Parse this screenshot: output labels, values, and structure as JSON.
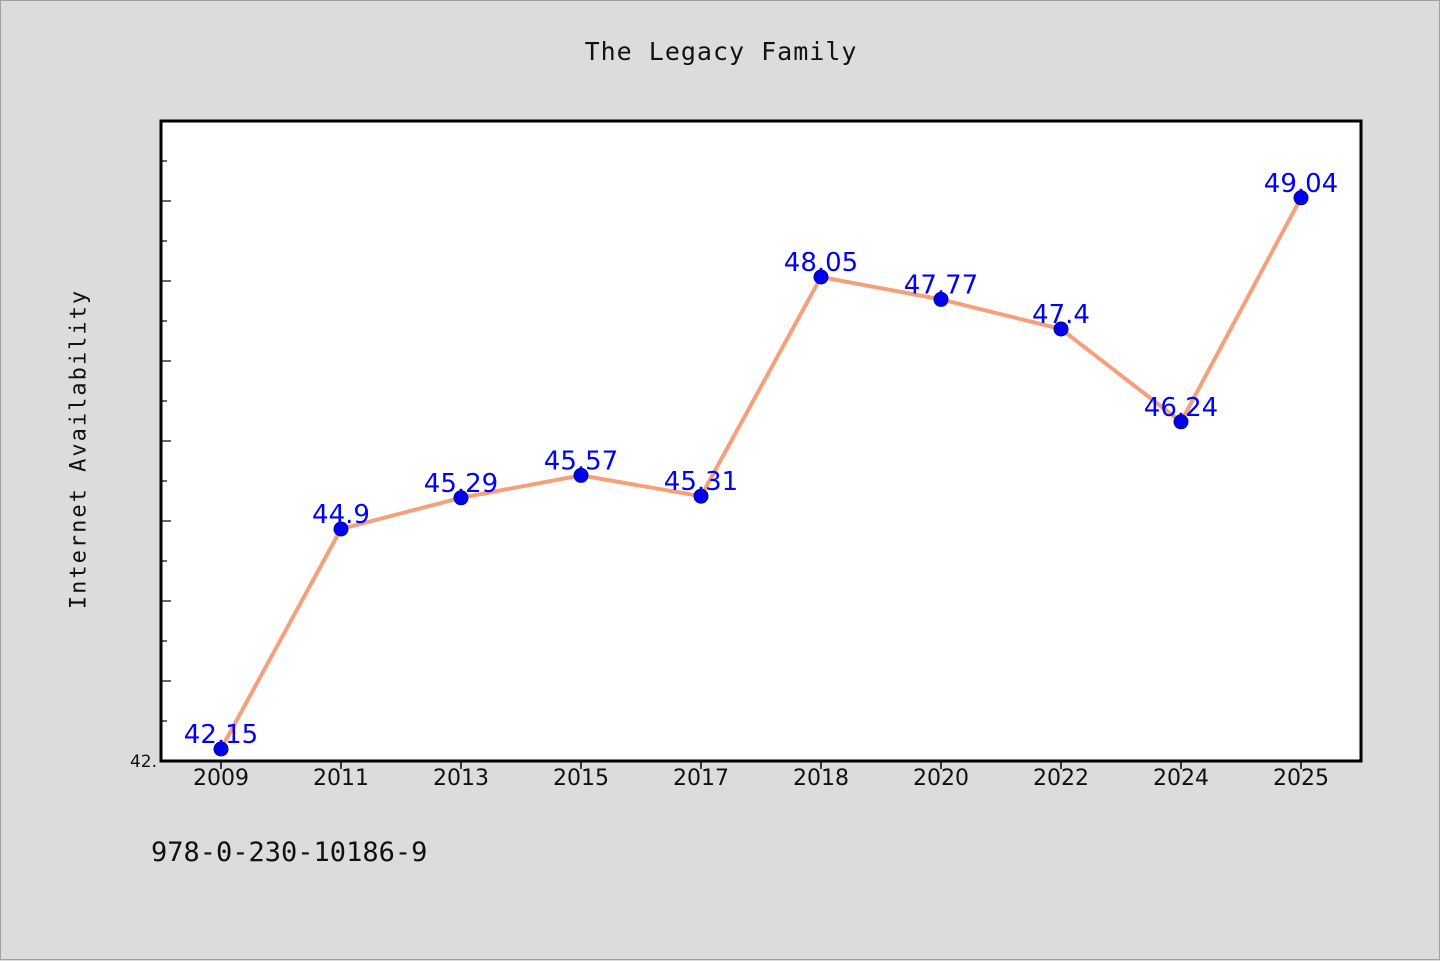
{
  "chart_data": {
    "type": "line",
    "title": "The Legacy Family",
    "xlabel": "",
    "ylabel": "Internet Availability",
    "categories": [
      "2009",
      "2011",
      "2013",
      "2015",
      "2017",
      "2018",
      "2020",
      "2022",
      "2024",
      "2025"
    ],
    "series": [
      {
        "values": [
          42.15,
          44.9,
          45.29,
          45.57,
          45.31,
          48.05,
          47.77,
          47.4,
          46.24,
          49.04
        ],
        "labels": [
          "42.15",
          "44.9",
          "45.29",
          "45.57",
          "45.31",
          "48.05",
          "47.77",
          "47.4",
          "46.24",
          "49.04"
        ]
      }
    ],
    "ylim": [
      42.0,
      50.0
    ],
    "ytick_labels": [
      "42."
    ],
    "grid": false,
    "line_color": "#f5a07a",
    "marker_color": "#0000ee",
    "label_color": "#0000ff"
  },
  "footer": {
    "code": "978-0-230-10186-9"
  }
}
